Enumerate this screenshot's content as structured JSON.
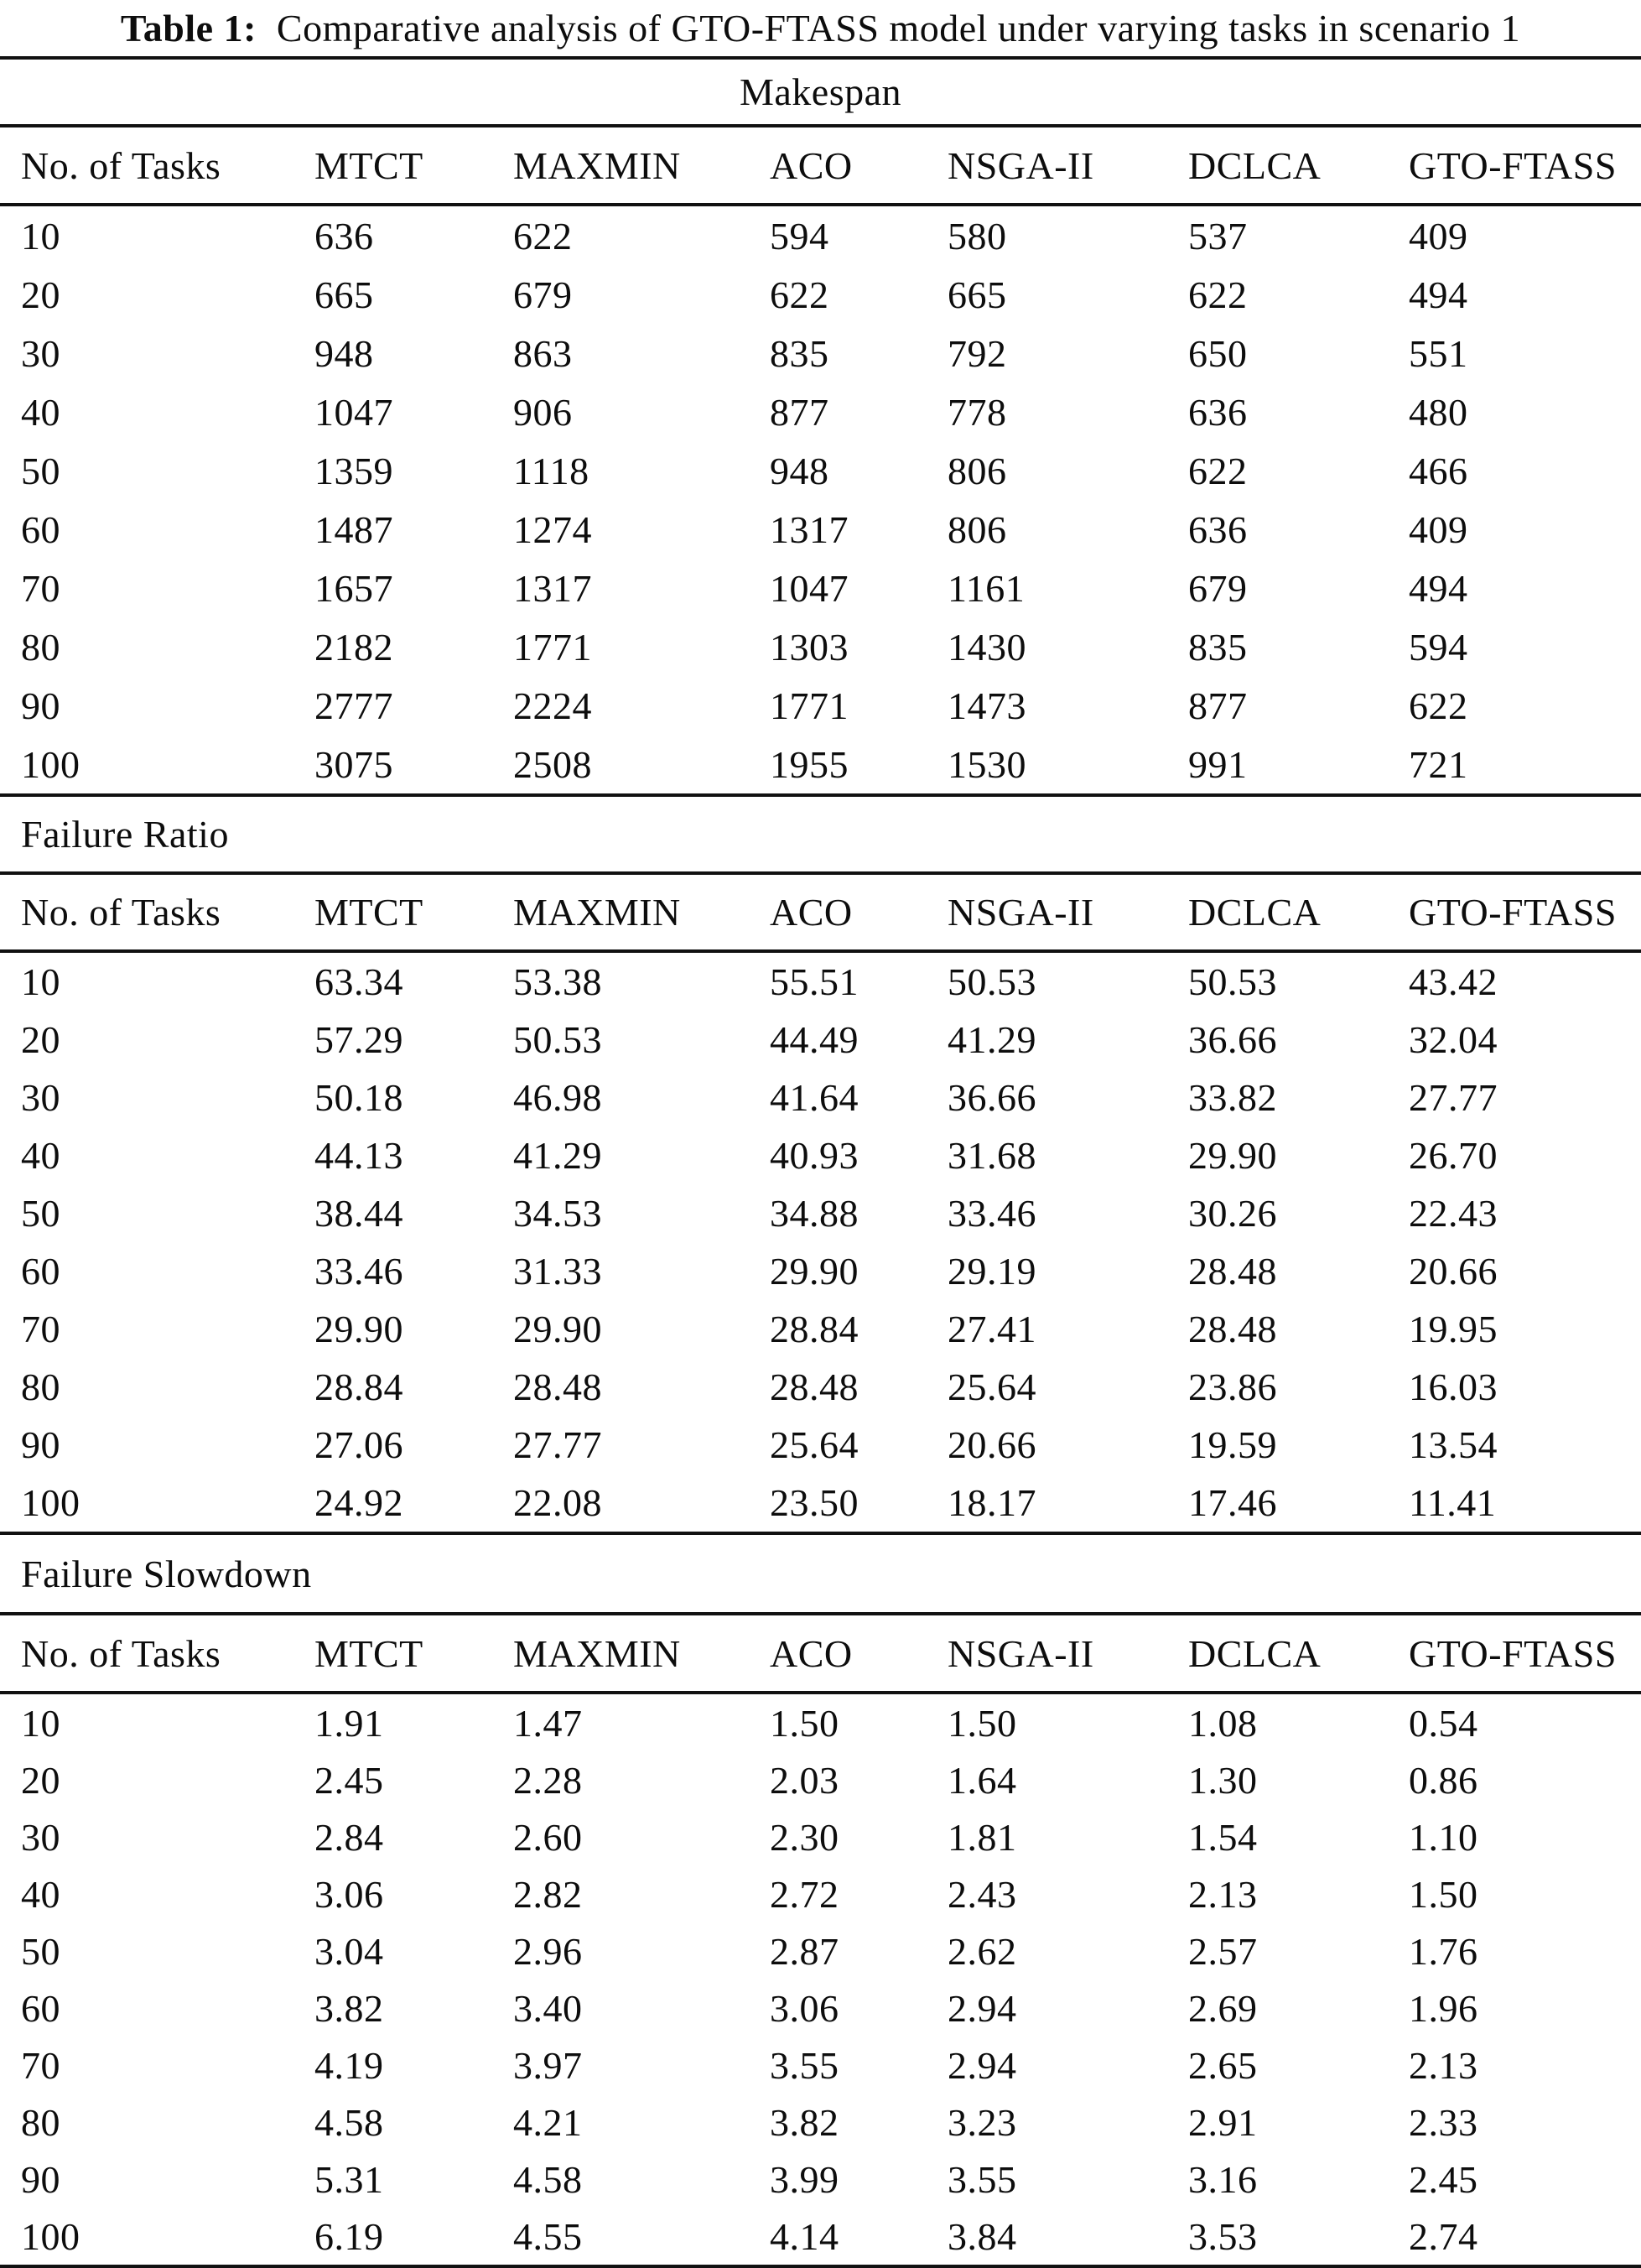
{
  "title": {
    "label": "Table 1:",
    "text": "Comparative analysis of GTO-FTASS model under varying tasks in scenario 1"
  },
  "columns": [
    "No. of Tasks",
    "MTCT",
    "MAXMIN",
    "ACO",
    "NSGA-II",
    "DCLCA",
    "GTO-FTASS"
  ],
  "sections": [
    {
      "name": "Makespan",
      "align": "center",
      "rows": [
        [
          "10",
          "636",
          "622",
          "594",
          "580",
          "537",
          "409"
        ],
        [
          "20",
          "665",
          "679",
          "622",
          "665",
          "622",
          "494"
        ],
        [
          "30",
          "948",
          "863",
          "835",
          "792",
          "650",
          "551"
        ],
        [
          "40",
          "1047",
          "906",
          "877",
          "778",
          "636",
          "480"
        ],
        [
          "50",
          "1359",
          "1118",
          "948",
          "806",
          "622",
          "466"
        ],
        [
          "60",
          "1487",
          "1274",
          "1317",
          "806",
          "636",
          "409"
        ],
        [
          "70",
          "1657",
          "1317",
          "1047",
          "1161",
          "679",
          "494"
        ],
        [
          "80",
          "2182",
          "1771",
          "1303",
          "1430",
          "835",
          "594"
        ],
        [
          "90",
          "2777",
          "2224",
          "1771",
          "1473",
          "877",
          "622"
        ],
        [
          "100",
          "3075",
          "2508",
          "1955",
          "1530",
          "991",
          "721"
        ]
      ]
    },
    {
      "name": "Failure Ratio",
      "align": "left",
      "rows": [
        [
          "10",
          "63.34",
          "53.38",
          "55.51",
          "50.53",
          "50.53",
          "43.42"
        ],
        [
          "20",
          "57.29",
          "50.53",
          "44.49",
          "41.29",
          "36.66",
          "32.04"
        ],
        [
          "30",
          "50.18",
          "46.98",
          "41.64",
          "36.66",
          "33.82",
          "27.77"
        ],
        [
          "40",
          "44.13",
          "41.29",
          "40.93",
          "31.68",
          "29.90",
          "26.70"
        ],
        [
          "50",
          "38.44",
          "34.53",
          "34.88",
          "33.46",
          "30.26",
          "22.43"
        ],
        [
          "60",
          "33.46",
          "31.33",
          "29.90",
          "29.19",
          "28.48",
          "20.66"
        ],
        [
          "70",
          "29.90",
          "29.90",
          "28.84",
          "27.41",
          "28.48",
          "19.95"
        ],
        [
          "80",
          "28.84",
          "28.48",
          "28.48",
          "25.64",
          "23.86",
          "16.03"
        ],
        [
          "90",
          "27.06",
          "27.77",
          "25.64",
          "20.66",
          "19.59",
          "13.54"
        ],
        [
          "100",
          "24.92",
          "22.08",
          "23.50",
          "18.17",
          "17.46",
          "11.41"
        ]
      ]
    },
    {
      "name": "Failure Slowdown",
      "align": "left",
      "rows": [
        [
          "10",
          "1.91",
          "1.47",
          "1.50",
          "1.50",
          "1.08",
          "0.54"
        ],
        [
          "20",
          "2.45",
          "2.28",
          "2.03",
          "1.64",
          "1.30",
          "0.86"
        ],
        [
          "30",
          "2.84",
          "2.60",
          "2.30",
          "1.81",
          "1.54",
          "1.10"
        ],
        [
          "40",
          "3.06",
          "2.82",
          "2.72",
          "2.43",
          "2.13",
          "1.50"
        ],
        [
          "50",
          "3.04",
          "2.96",
          "2.87",
          "2.62",
          "2.57",
          "1.76"
        ],
        [
          "60",
          "3.82",
          "3.40",
          "3.06",
          "2.94",
          "2.69",
          "1.96"
        ],
        [
          "70",
          "4.19",
          "3.97",
          "3.55",
          "2.94",
          "2.65",
          "2.13"
        ],
        [
          "80",
          "4.58",
          "4.21",
          "3.82",
          "3.23",
          "2.91",
          "2.33"
        ],
        [
          "90",
          "5.31",
          "4.58",
          "3.99",
          "3.55",
          "3.16",
          "2.45"
        ],
        [
          "100",
          "6.19",
          "4.55",
          "4.14",
          "3.84",
          "3.53",
          "2.74"
        ]
      ]
    }
  ]
}
